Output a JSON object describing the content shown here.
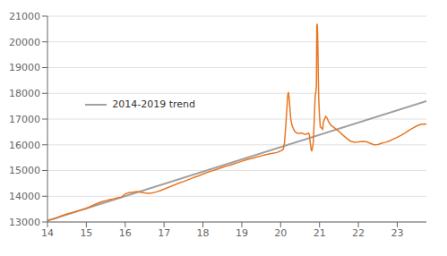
{
  "chart_data": {
    "type": "line",
    "xlim": [
      14,
      23.75
    ],
    "ylim": [
      13000,
      21000
    ],
    "xticks": [
      14,
      15,
      16,
      17,
      18,
      19,
      20,
      21,
      22,
      23
    ],
    "yticks": [
      13000,
      14000,
      15000,
      16000,
      17000,
      18000,
      19000,
      20000,
      21000
    ],
    "grid": true,
    "legend": "center left",
    "series": [
      {
        "name": "2014-2019 trend",
        "color": "#a0a0a0",
        "x": [
          14.0,
          23.75
        ],
        "values": [
          13050,
          17700
        ]
      },
      {
        "color": "#E87722",
        "x": [
          14.0,
          14.1,
          14.2,
          14.3,
          14.4,
          14.5,
          14.6,
          14.7,
          14.8,
          14.9,
          15.0,
          15.1,
          15.2,
          15.3,
          15.4,
          15.5,
          15.6,
          15.7,
          15.8,
          15.9,
          16.0,
          16.1,
          16.2,
          16.3,
          16.4,
          16.5,
          16.6,
          16.7,
          16.8,
          16.9,
          17.0,
          17.1,
          17.2,
          17.3,
          17.4,
          17.5,
          17.6,
          17.7,
          17.8,
          17.9,
          18.0,
          18.1,
          18.2,
          18.3,
          18.4,
          18.5,
          18.6,
          18.7,
          18.8,
          18.9,
          19.0,
          19.1,
          19.2,
          19.3,
          19.4,
          19.5,
          19.6,
          19.7,
          19.8,
          19.9,
          19.95,
          20.0,
          20.04,
          20.07,
          20.1,
          20.13,
          20.16,
          20.18,
          20.2,
          20.22,
          20.24,
          20.26,
          20.28,
          20.3,
          20.33,
          20.36,
          20.39,
          20.42,
          20.45,
          20.48,
          20.51,
          20.54,
          20.57,
          20.6,
          20.63,
          20.66,
          20.69,
          20.72,
          20.74,
          20.76,
          20.78,
          20.8,
          20.82,
          20.84,
          20.86,
          20.88,
          20.89,
          20.91,
          20.92,
          20.93,
          20.94,
          20.95,
          20.96,
          20.97,
          20.98,
          21.0,
          21.02,
          21.05,
          21.08,
          21.1,
          21.13,
          21.16,
          21.19,
          21.22,
          21.25,
          21.3,
          21.4,
          21.5,
          21.6,
          21.7,
          21.8,
          21.9,
          22.0,
          22.1,
          22.2,
          22.3,
          22.4,
          22.5,
          22.6,
          22.7,
          22.8,
          22.9,
          23.0,
          23.1,
          23.2,
          23.3,
          23.4,
          23.5,
          23.6,
          23.7,
          23.75
        ],
        "values": [
          13060,
          13100,
          13130,
          13200,
          13260,
          13310,
          13350,
          13390,
          13440,
          13480,
          13530,
          13600,
          13670,
          13730,
          13790,
          13830,
          13870,
          13900,
          13940,
          13960,
          14090,
          14140,
          14160,
          14180,
          14160,
          14130,
          14110,
          14130,
          14170,
          14220,
          14280,
          14340,
          14400,
          14460,
          14520,
          14570,
          14630,
          14690,
          14750,
          14800,
          14860,
          14920,
          14970,
          15020,
          15070,
          15120,
          15170,
          15210,
          15260,
          15310,
          15360,
          15410,
          15450,
          15490,
          15530,
          15570,
          15610,
          15640,
          15670,
          15700,
          15730,
          15760,
          15790,
          15840,
          16100,
          16700,
          17400,
          17900,
          18050,
          17800,
          17400,
          17000,
          16850,
          16720,
          16620,
          16530,
          16480,
          16460,
          16440,
          16440,
          16450,
          16460,
          16440,
          16420,
          16410,
          16410,
          16430,
          16450,
          16380,
          16100,
          15850,
          15750,
          15900,
          16100,
          16800,
          17600,
          17900,
          18100,
          18300,
          20600,
          20700,
          20400,
          19600,
          18500,
          17800,
          17100,
          16700,
          16650,
          16600,
          16900,
          17000,
          17100,
          17050,
          16950,
          16850,
          16750,
          16640,
          16520,
          16380,
          16250,
          16140,
          16100,
          16110,
          16130,
          16120,
          16060,
          16000,
          16010,
          16060,
          16100,
          16150,
          16220,
          16290,
          16370,
          16460,
          16560,
          16650,
          16730,
          16790,
          16810,
          16800
        ]
      }
    ]
  }
}
